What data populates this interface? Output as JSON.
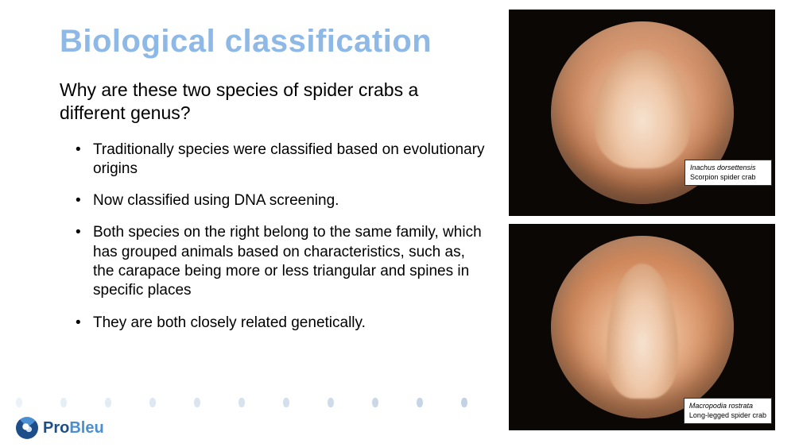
{
  "title": "Biological classification",
  "subtitle": "Why are these two species of spider crabs a different genus?",
  "bullets": [
    "Traditionally  species were classified based on evolutionary origins",
    "Now classified using DNA screening.",
    "Both species on the right belong to the same family, which has grouped animals based on characteristics, such as, the carapace being more or less triangular and spines in specific places",
    "They are both closely related genetically."
  ],
  "images": {
    "top": {
      "scientific": "Inachus dorsettensis",
      "common": "Scorpion spider crab"
    },
    "bottom": {
      "scientific": "Macropodia rostrata",
      "common": "Long-legged spider crab"
    }
  },
  "logo": {
    "part1": "Pro",
    "part2": "Bleu"
  },
  "colors": {
    "title": "#8eb8e5",
    "text": "#000000",
    "dot_colors": [
      "#d9e6f2",
      "#cfe0ee",
      "#c7daea",
      "#bed3e6",
      "#b6cde2",
      "#aec6de",
      "#a6c0da",
      "#9eb9d6",
      "#96b3d2",
      "#8eaccf",
      "#86a6cb"
    ]
  }
}
